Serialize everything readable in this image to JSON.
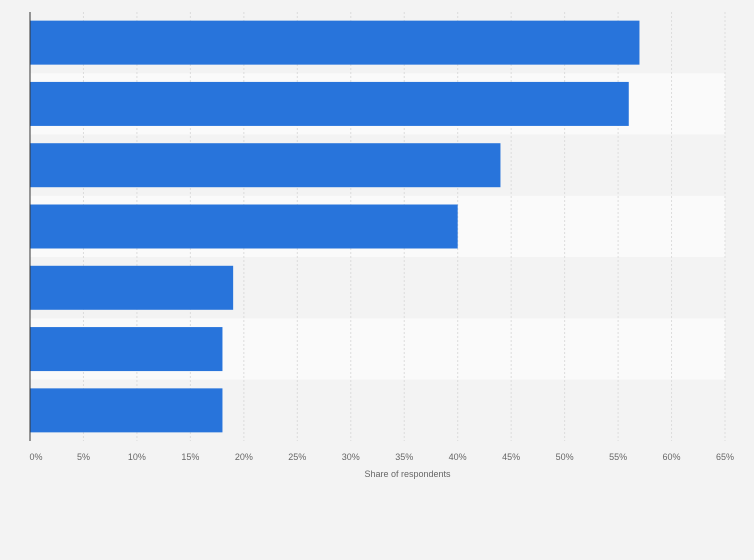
{
  "chart_data": {
    "type": "bar",
    "orientation": "horizontal",
    "categories": [
      "",
      "",
      "",
      "",
      "",
      "",
      ""
    ],
    "values": [
      57,
      56,
      44,
      40,
      19,
      18,
      18
    ],
    "title": "",
    "xlabel": "Share of respondents",
    "ylabel": "",
    "xlim": [
      0,
      65
    ],
    "x_ticks": [
      0,
      5,
      10,
      15,
      20,
      25,
      30,
      35,
      40,
      45,
      50,
      55,
      60,
      65
    ],
    "x_tick_labels": [
      "0%",
      "5%",
      "10%",
      "15%",
      "20%",
      "25%",
      "30%",
      "35%",
      "40%",
      "45%",
      "50%",
      "55%",
      "60%",
      "65%"
    ],
    "grid": true,
    "legend": "none",
    "colors": {
      "bar": "#2874db",
      "background": "#f3f3f3",
      "band_light": "#fafafa",
      "band_dark": "#f3f3f3",
      "grid": "#dcdcdc",
      "axis": "#333333",
      "text": "#666666"
    }
  }
}
